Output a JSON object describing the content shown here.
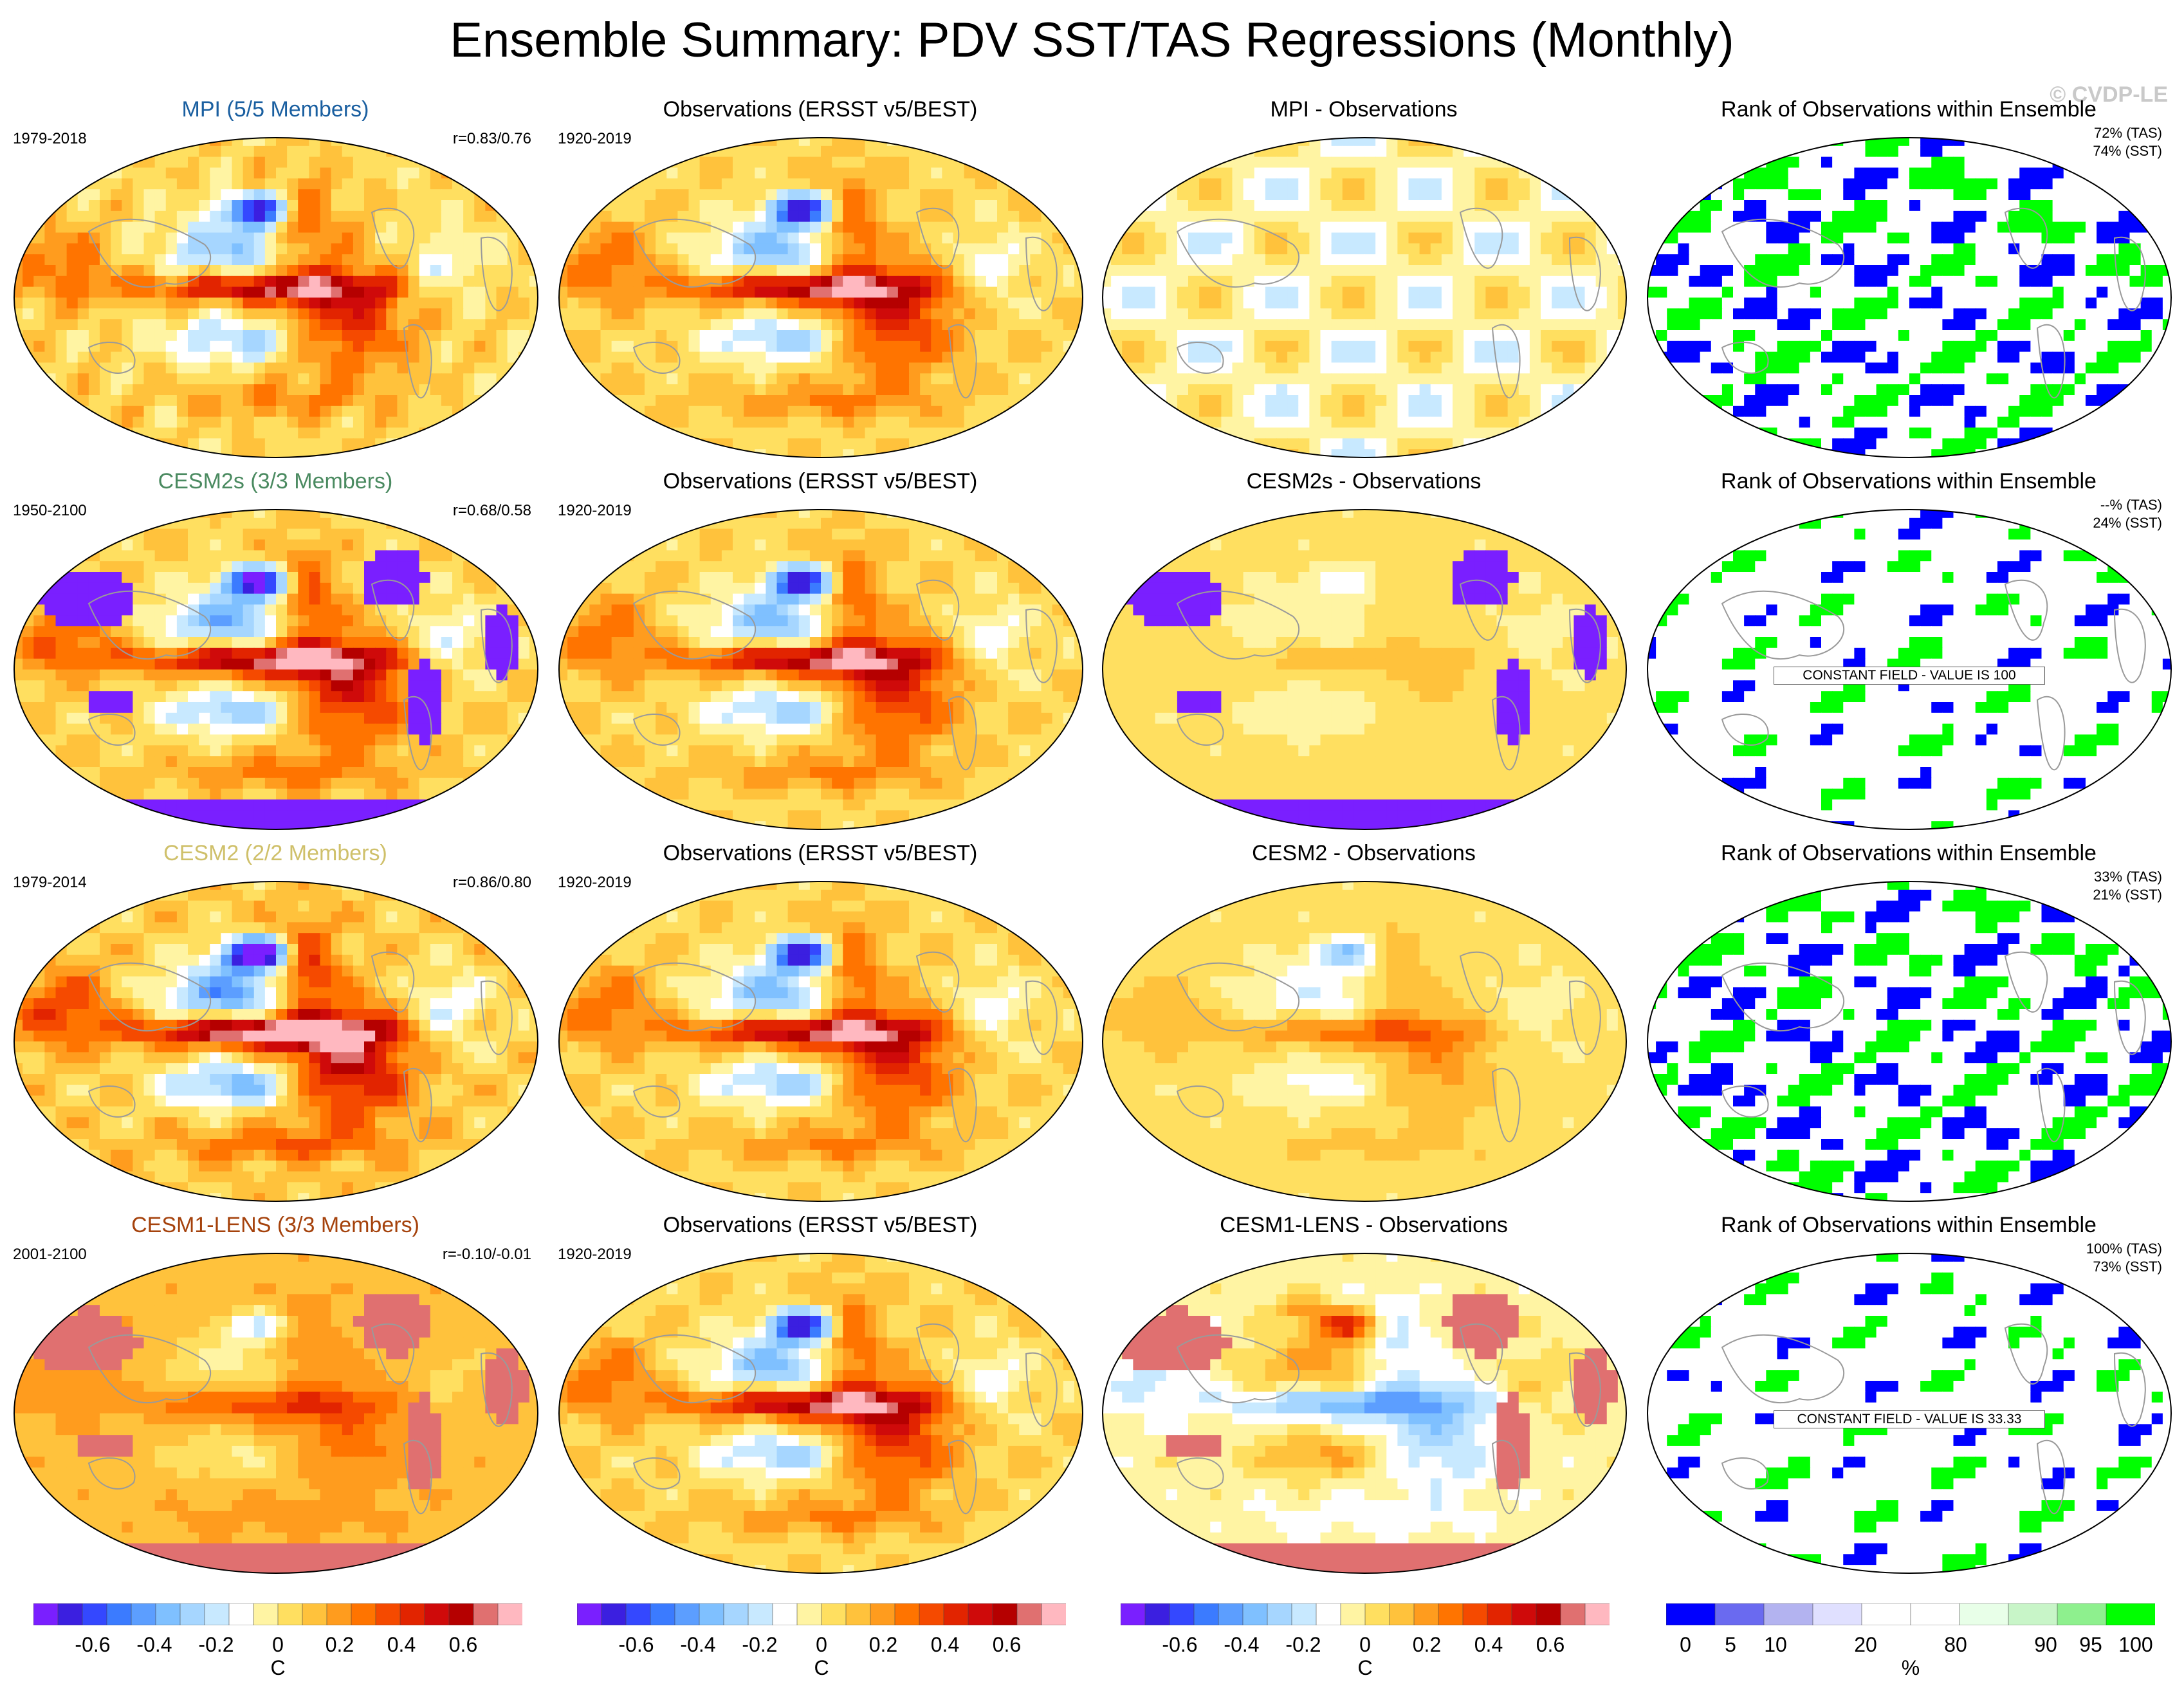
{
  "title": "Ensemble Summary: PDV SST/TAS Regressions (Monthly)",
  "watermark": "© CVDP-LE",
  "colors": {
    "regression_scale": [
      "#7a1fff",
      "#3b1fe0",
      "#3448ff",
      "#3b7bff",
      "#5c9eff",
      "#7fc0ff",
      "#a6d6ff",
      "#c8e9ff",
      "#ffffff",
      "#fff4a3",
      "#ffdf60",
      "#ffc23c",
      "#ff9c1e",
      "#ff7400",
      "#f54a00",
      "#e22400",
      "#cf0a0a",
      "#b50000",
      "#e07070",
      "#ffb8c0"
    ],
    "rank_scale": [
      "#0000ff",
      "#6a6af0",
      "#b3b3f0",
      "#e0e0ff",
      "#ffffff",
      "#ffffff",
      "#e8ffe8",
      "#c8f5c8",
      "#8ef08e",
      "#00ff00"
    ],
    "model_titles": {
      "MPI": "#1a5fa0",
      "CESM2s": "#4a8a60",
      "CESM2": "#cfc06a",
      "CESM1-LENS": "#a5420c"
    }
  },
  "rows": [
    {
      "model": {
        "title": "MPI (5/5 Members)",
        "period": "1979-2018",
        "pattern_corr": "r=0.83/0.76",
        "color_key": "MPI"
      },
      "obs": {
        "title": "Observations (ERSST v5/BEST)",
        "period": "1920-2019"
      },
      "diff": {
        "title": "MPI - Observations"
      },
      "rank": {
        "title": "Rank of Observations within Ensemble",
        "tas_pct": "72% (TAS)",
        "sst_pct": "74% (SST)",
        "note": ""
      }
    },
    {
      "model": {
        "title": "CESM2s (3/3 Members)",
        "period": "1950-2100",
        "pattern_corr": "r=0.68/0.58",
        "color_key": "CESM2s"
      },
      "obs": {
        "title": "Observations (ERSST v5/BEST)",
        "period": "1920-2019"
      },
      "diff": {
        "title": "CESM2s - Observations"
      },
      "rank": {
        "title": "Rank of Observations within Ensemble",
        "tas_pct": "--% (TAS)",
        "sst_pct": "24% (SST)",
        "note": "CONSTANT FIELD - VALUE IS 100"
      }
    },
    {
      "model": {
        "title": "CESM2 (2/2 Members)",
        "period": "1979-2014",
        "pattern_corr": "r=0.86/0.80",
        "color_key": "CESM2"
      },
      "obs": {
        "title": "Observations (ERSST v5/BEST)",
        "period": "1920-2019"
      },
      "diff": {
        "title": "CESM2 - Observations"
      },
      "rank": {
        "title": "Rank of Observations within Ensemble",
        "tas_pct": "33% (TAS)",
        "sst_pct": "21% (SST)",
        "note": ""
      }
    },
    {
      "model": {
        "title": "CESM1-LENS (3/3 Members)",
        "period": "2001-2100",
        "pattern_corr": "r=-0.10/-0.01",
        "color_key": "CESM1-LENS"
      },
      "obs": {
        "title": "Observations (ERSST v5/BEST)",
        "period": "1920-2019"
      },
      "diff": {
        "title": "CESM1-LENS - Observations"
      },
      "rank": {
        "title": "Rank of Observations within Ensemble",
        "tas_pct": "100% (TAS)",
        "sst_pct": "73% (SST)",
        "note": "CONSTANT FIELD - VALUE IS 33.33"
      }
    }
  ],
  "colorbars": [
    {
      "labels": [
        "-0.6",
        "-0.4",
        "-0.2",
        "0",
        "0.2",
        "0.4",
        "0.6"
      ],
      "unit": "C",
      "scale": "regression_scale"
    },
    {
      "labels": [
        "-0.6",
        "-0.4",
        "-0.2",
        "0",
        "0.2",
        "0.4",
        "0.6"
      ],
      "unit": "C",
      "scale": "regression_scale"
    },
    {
      "labels": [
        "-0.6",
        "-0.4",
        "-0.2",
        "0",
        "0.2",
        "0.4",
        "0.6"
      ],
      "unit": "C",
      "scale": "regression_scale"
    },
    {
      "labels": [
        "0",
        "5",
        "10",
        "20",
        "80",
        "90",
        "95",
        "100"
      ],
      "unit": "%",
      "scale": "rank_scale"
    }
  ],
  "colorbar_rank_positions": [
    0.0,
    0.1,
    0.2,
    0.4,
    0.6,
    0.8,
    0.9,
    1.0
  ]
}
